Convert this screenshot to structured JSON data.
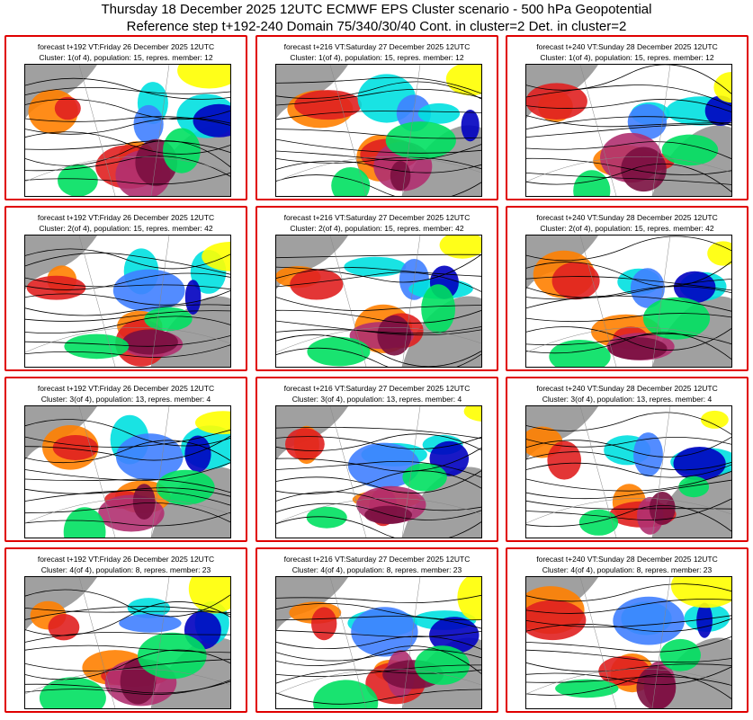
{
  "header": {
    "title": "Thursday 18 December 2025 12UTC ECMWF EPS Cluster scenario - 500 hPa Geopotential",
    "subtitle": "Reference step t+192-240 Domain 75/340/30/40 Cont. in cluster=2 Det. in cluster=2"
  },
  "colors": {
    "border": "#e00000",
    "land": "#a0a0a0",
    "anom": [
      "#7a1040",
      "#b03070",
      "#e02020",
      "#ff8000",
      "#ffff00",
      "#00e060",
      "#00e0e0",
      "#4080ff",
      "#0000c0"
    ]
  },
  "steps": [
    {
      "label": "forecast t+192 VT:Friday 26 December 2025 12UTC"
    },
    {
      "label": "forecast t+216 VT:Saturday 27 December 2025 12UTC"
    },
    {
      "label": "forecast t+240 VT:Sunday 28 December 2025 12UTC"
    }
  ],
  "clusters": [
    {
      "label": "Cluster: 1(of 4), population: 15, repres. member: 12"
    },
    {
      "label": "Cluster: 2(of 4), population: 15, repres. member: 42"
    },
    {
      "label": "Cluster: 3(of 4), population: 13, repres. member: 4"
    },
    {
      "label": "Cluster: 4(of 4), population: 8, repres. member: 23"
    }
  ]
}
